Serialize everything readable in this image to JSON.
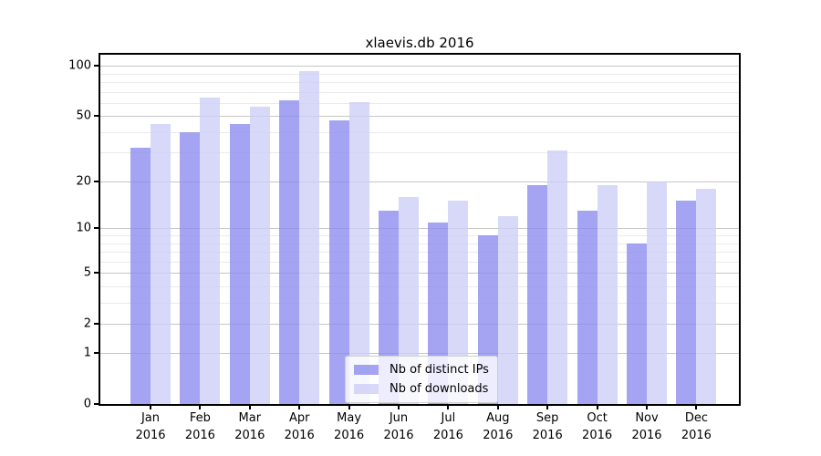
{
  "chart_data": {
    "type": "bar",
    "title": "xlaevis.db 2016",
    "categories": [
      "Jan",
      "Feb",
      "Mar",
      "Apr",
      "May",
      "Jun",
      "Jul",
      "Aug",
      "Sep",
      "Oct",
      "Nov",
      "Dec"
    ],
    "category_year_label": "2016",
    "series": [
      {
        "name": "Nb of distinct IPs",
        "color": "#8a8af0",
        "values": [
          32,
          40,
          45,
          62,
          47,
          13,
          11,
          9,
          19,
          13,
          8,
          15
        ]
      },
      {
        "name": "Nb of downloads",
        "color": "#cdcdf6",
        "values": [
          45,
          65,
          57,
          93,
          61,
          16,
          15,
          12,
          31,
          19,
          20,
          18
        ]
      }
    ],
    "bar_alpha": 0.78,
    "yscale": "log10(value+1)",
    "ylim": [
      0,
      117
    ],
    "y_ticks": [
      0,
      1,
      2,
      5,
      10,
      20,
      50,
      100
    ],
    "y_minor_ticks": [
      3,
      4,
      6,
      7,
      8,
      9,
      30,
      40,
      60,
      70,
      80,
      90
    ],
    "grid": true,
    "legend_position": "lower center",
    "background_color": "#ffffff",
    "text_color": "#000000"
  }
}
